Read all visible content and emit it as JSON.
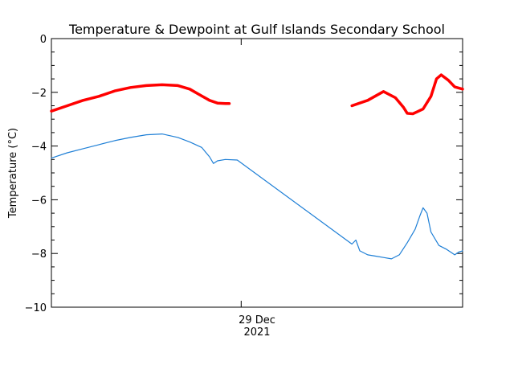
{
  "chart_data": {
    "type": "line",
    "title": "Temperature & Dewpoint at Gulf Islands Secondary School",
    "ylabel": "Temperature (°C)",
    "ylim": [
      -10,
      0
    ],
    "yticks": [
      0,
      -2,
      -4,
      -6,
      -8,
      -10
    ],
    "x_tick_label_line1": "29 Dec",
    "x_tick_label_line2": "2021",
    "x_range_hours": [
      0,
      48
    ],
    "x_major_tick_hour": 24,
    "grid": false,
    "legend": "none",
    "series": [
      {
        "role": "temperature",
        "color": "#ff0000",
        "segments": [
          [
            [
              0,
              -2.7
            ],
            [
              2,
              -2.5
            ],
            [
              4,
              -2.3
            ],
            [
              6,
              -2.15
            ],
            [
              8,
              -1.95
            ],
            [
              10,
              -1.82
            ],
            [
              12,
              -1.75
            ],
            [
              14,
              -1.72
            ],
            [
              16,
              -1.75
            ],
            [
              17.5,
              -1.88
            ],
            [
              18.5,
              -2.05
            ],
            [
              20,
              -2.3
            ],
            [
              21,
              -2.4
            ],
            [
              22,
              -2.42
            ],
            [
              22.5,
              -2.42
            ]
          ],
          [
            [
              38,
              -2.5
            ],
            [
              40,
              -2.3
            ],
            [
              42,
              -1.97
            ],
            [
              43.5,
              -2.2
            ],
            [
              44.5,
              -2.55
            ],
            [
              45,
              -2.78
            ],
            [
              45.7,
              -2.8
            ],
            [
              46.3,
              -2.72
            ],
            [
              47,
              -2.62
            ],
            [
              48,
              -2.15
            ],
            [
              48.7,
              -1.5
            ],
            [
              49.3,
              -1.35
            ],
            [
              50.2,
              -1.55
            ],
            [
              51,
              -1.8
            ],
            [
              52,
              -1.88
            ]
          ]
        ]
      },
      {
        "role": "dewpoint",
        "color": "#1e7fd6",
        "segments": [
          [
            [
              0,
              -4.45
            ],
            [
              2,
              -4.25
            ],
            [
              4,
              -4.1
            ],
            [
              6,
              -3.95
            ],
            [
              8,
              -3.8
            ],
            [
              10,
              -3.68
            ],
            [
              12,
              -3.58
            ],
            [
              14,
              -3.55
            ],
            [
              16,
              -3.68
            ],
            [
              17.5,
              -3.85
            ],
            [
              19,
              -4.05
            ],
            [
              20,
              -4.4
            ],
            [
              20.5,
              -4.65
            ],
            [
              21,
              -4.55
            ],
            [
              22,
              -4.5
            ],
            [
              23.5,
              -4.52
            ],
            [
              38,
              -7.65
            ],
            [
              38.5,
              -7.5
            ],
            [
              39,
              -7.9
            ],
            [
              40,
              -8.05
            ],
            [
              41,
              -8.1
            ],
            [
              42,
              -8.15
            ],
            [
              43,
              -8.2
            ],
            [
              44,
              -8.05
            ],
            [
              45,
              -7.6
            ],
            [
              46,
              -7.1
            ],
            [
              46.6,
              -6.6
            ],
            [
              47,
              -6.3
            ],
            [
              47.5,
              -6.5
            ],
            [
              48,
              -7.2
            ],
            [
              49,
              -7.7
            ],
            [
              50,
              -7.85
            ],
            [
              51,
              -8.05
            ],
            [
              51.5,
              -7.95
            ],
            [
              52,
              -7.9
            ]
          ]
        ]
      }
    ]
  }
}
